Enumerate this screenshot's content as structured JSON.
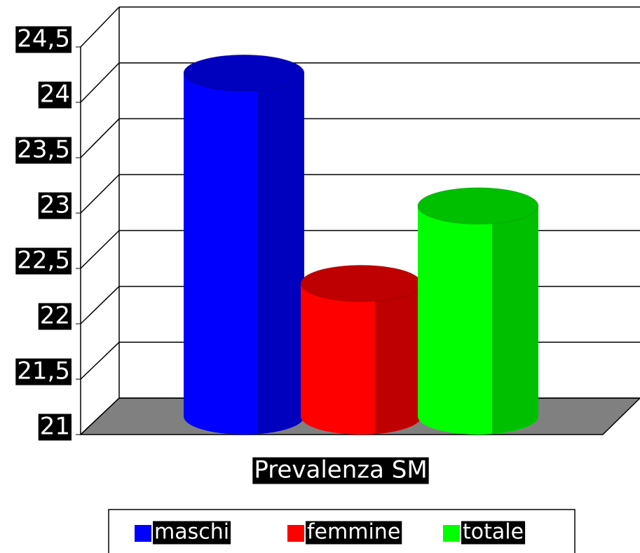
{
  "chart_data": {
    "type": "bar",
    "style": "3d-cylinder",
    "categories": [
      "Prevalenza SM"
    ],
    "series": [
      {
        "name": "maschi",
        "color": "#0000ff",
        "values": [
          24.1
        ]
      },
      {
        "name": "femmine",
        "color": "#ff0000",
        "values": [
          22.2
        ]
      },
      {
        "name": "totale",
        "color": "#00ff00",
        "values": [
          22.9
        ]
      }
    ],
    "ylim": [
      21,
      24.5
    ],
    "yticks": [
      21,
      {
        "value": 21.5,
        "label": "21,5"
      },
      22,
      {
        "value": 22.5,
        "label": "22,5"
      },
      23,
      {
        "value": 23.5,
        "label": "23,5"
      },
      24,
      {
        "value": 24.5,
        "label": "24,5"
      }
    ],
    "grid": true,
    "legend": "bottom"
  }
}
